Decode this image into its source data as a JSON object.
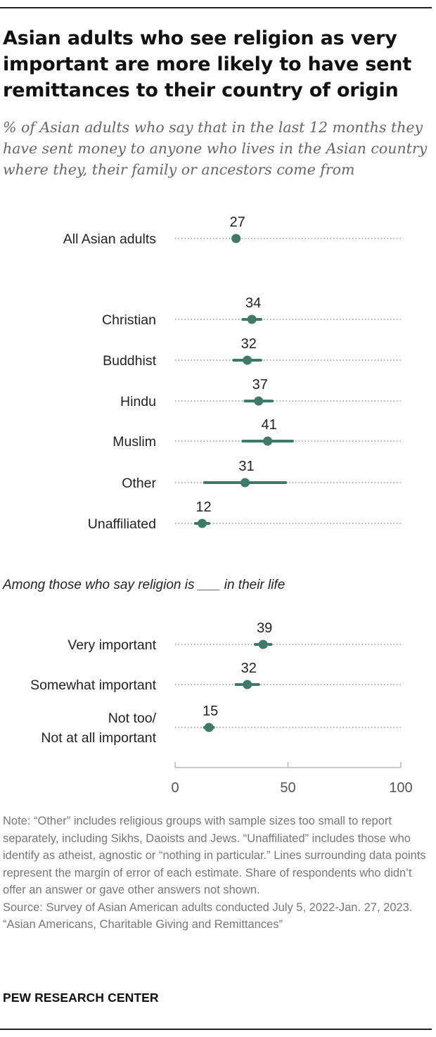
{
  "header": {
    "title": "Asian adults who see religion as very important are more likely to have sent remittances to their country of origin",
    "subtitle": "% of Asian adults who say that in the last 12 months they have sent money to anyone who lives in the Asian country where they, their family or ancestors come from"
  },
  "chart_data": {
    "type": "dot plot with error bars",
    "xlim": [
      0,
      100
    ],
    "x_ticks": [
      "0",
      "50",
      "100"
    ],
    "section_label": "Among those who say religion is ___ in their life",
    "colors": {
      "point": "#3f7a68",
      "dotted_line": "#a9b2ae",
      "axis": "#b9b9b9"
    },
    "rows": [
      {
        "label": "All Asian adults",
        "value": 27,
        "margin_of_error": 0
      },
      {
        "label": "Christian",
        "value": 34,
        "margin_of_error": 4
      },
      {
        "label": "Buddhist",
        "value": 32,
        "margin_of_error": 6
      },
      {
        "label": "Hindu",
        "value": 37,
        "margin_of_error": 6
      },
      {
        "label": "Muslim",
        "value": 41,
        "margin_of_error": 11
      },
      {
        "label": "Other",
        "value": 31,
        "margin_of_error": 18
      },
      {
        "label": "Unaffiliated",
        "value": 12,
        "margin_of_error": 3
      },
      {
        "label": "Very important",
        "value": 39,
        "margin_of_error": 3.5
      },
      {
        "label": "Somewhat important",
        "value": 32,
        "margin_of_error": 5
      },
      {
        "label": [
          "Not too/",
          "Not at all important"
        ],
        "value": 15,
        "margin_of_error": 2
      }
    ]
  },
  "footer": {
    "note": "Note: “Other” includes religious groups with sample sizes too small to report separately, including Sikhs, Daoists and Jews. “Unaffiliated” includes those who identify as atheist, agnostic or “nothing in particular.” Lines surrounding data points represent the margin of error of each estimate. Share of respondents who didn’t offer an answer or gave other answers not shown.",
    "source": "Source: Survey of Asian American adults conducted July 5, 2022-Jan. 27, 2023.",
    "report": "“Asian Americans, Charitable Giving and Remittances”",
    "brand": "PEW RESEARCH CENTER"
  }
}
